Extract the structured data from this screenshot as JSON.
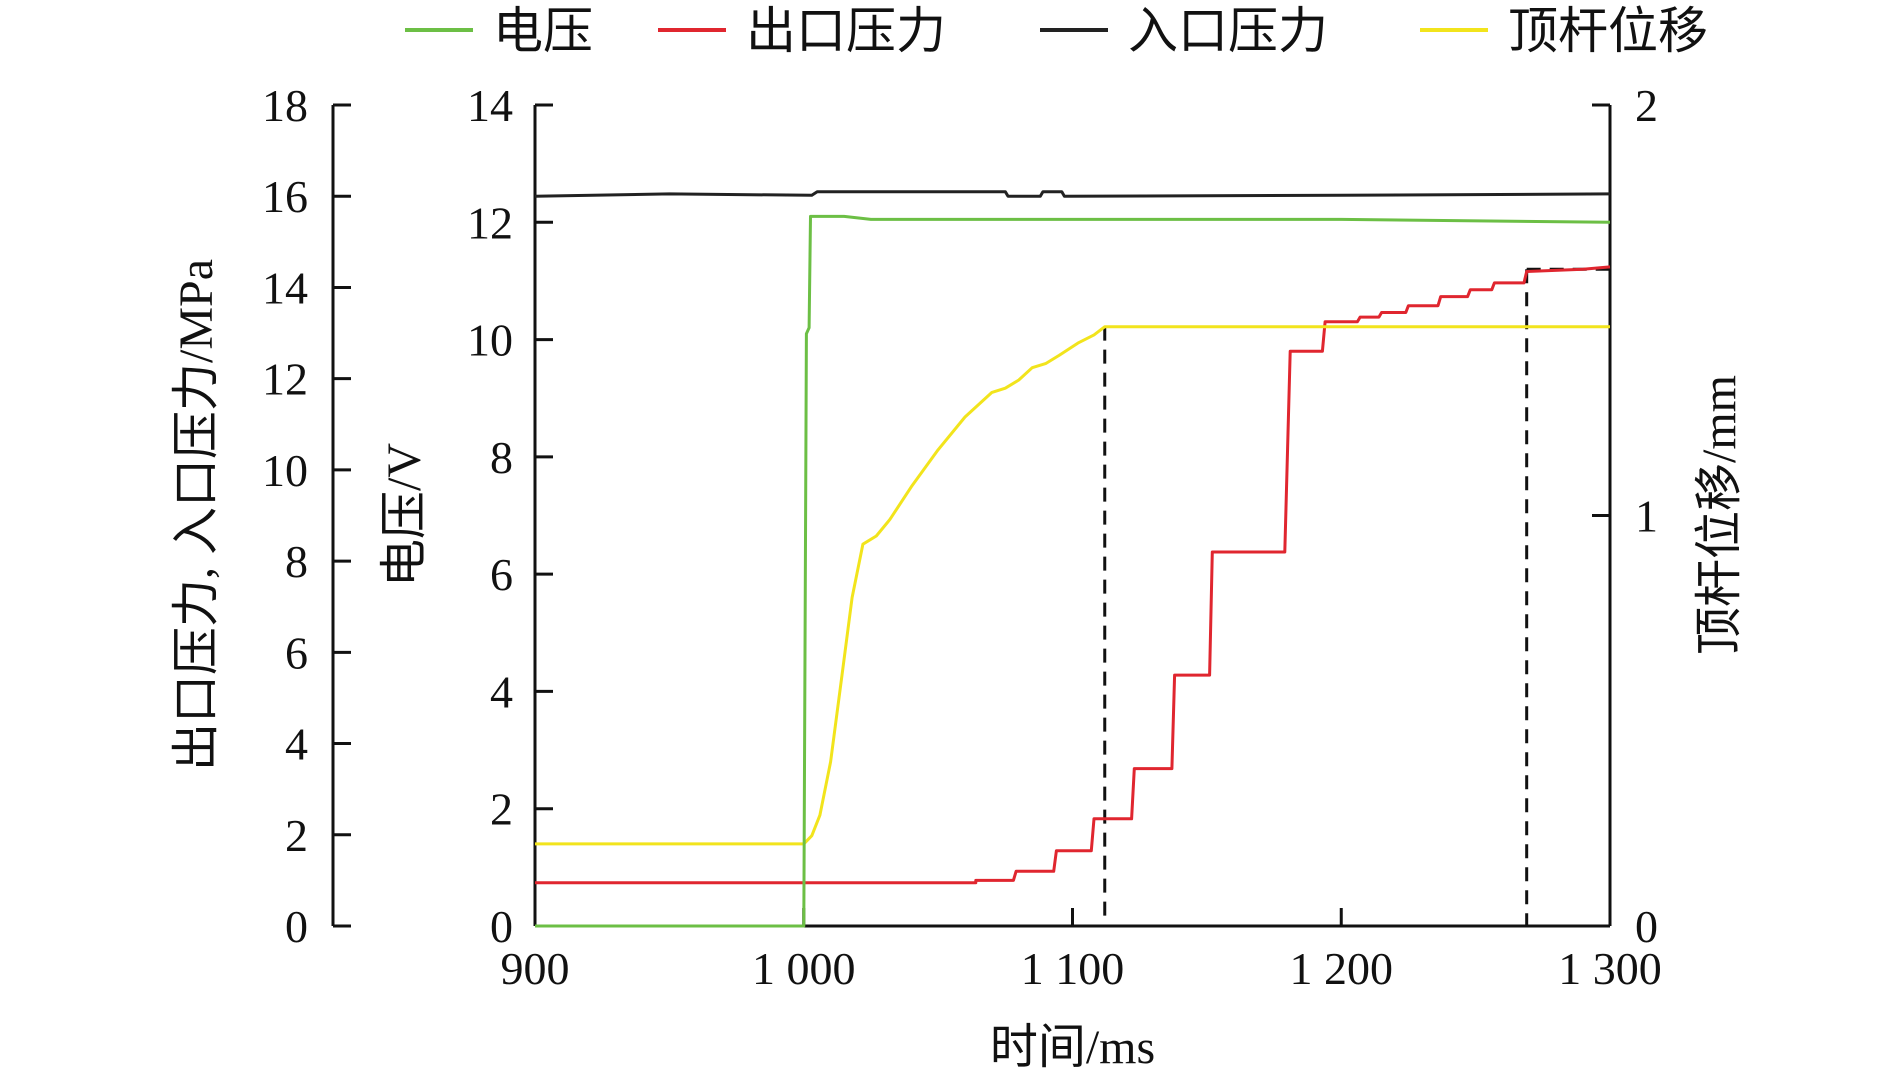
{
  "chart_data": {
    "type": "line",
    "xlabel": "时间/ms",
    "xlim": [
      900,
      1300
    ],
    "xticks": [
      900,
      1000,
      1100,
      1200,
      1300
    ],
    "xtick_labels": [
      "900",
      "1 000",
      "1 100",
      "1 200",
      "1 300"
    ],
    "axes": {
      "pressure": {
        "label": "出口压力, 入口压力/MPa",
        "lim": [
          0,
          18
        ],
        "ticks": [
          0,
          2,
          4,
          6,
          8,
          10,
          12,
          14,
          16,
          18
        ]
      },
      "voltage": {
        "label": "电压/V",
        "lim": [
          0,
          14
        ],
        "ticks": [
          0,
          2,
          4,
          6,
          8,
          10,
          12,
          14
        ]
      },
      "displacement": {
        "label": "顶杆位移/mm",
        "lim": [
          0,
          2
        ],
        "ticks": [
          0,
          1,
          2
        ]
      }
    },
    "legend_position": "top",
    "series": [
      {
        "name": "电压",
        "axis": "voltage",
        "color": "#6cbf45",
        "points": [
          [
            900,
            0
          ],
          [
            1000,
            0
          ],
          [
            1001,
            10.1
          ],
          [
            1002,
            10.2
          ],
          [
            1002.5,
            12.1
          ],
          [
            1015,
            12.1
          ],
          [
            1025,
            12.05
          ],
          [
            1100,
            12.05
          ],
          [
            1200,
            12.05
          ],
          [
            1300,
            12.0
          ]
        ]
      },
      {
        "name": "出口压力",
        "axis": "pressure",
        "color": "#e0262f",
        "points": [
          [
            900,
            0.95
          ],
          [
            1064,
            0.95
          ],
          [
            1064,
            1.0
          ],
          [
            1078,
            1.0
          ],
          [
            1079,
            1.2
          ],
          [
            1093,
            1.2
          ],
          [
            1094,
            1.65
          ],
          [
            1107,
            1.65
          ],
          [
            1108,
            2.35
          ],
          [
            1122,
            2.35
          ],
          [
            1123,
            3.45
          ],
          [
            1137,
            3.45
          ],
          [
            1138,
            5.5
          ],
          [
            1151,
            5.5
          ],
          [
            1152,
            8.2
          ],
          [
            1179,
            8.2
          ],
          [
            1181,
            12.6
          ],
          [
            1193,
            12.6
          ],
          [
            1194,
            13.25
          ],
          [
            1206,
            13.25
          ],
          [
            1207,
            13.35
          ],
          [
            1214,
            13.35
          ],
          [
            1215,
            13.45
          ],
          [
            1224,
            13.45
          ],
          [
            1225,
            13.6
          ],
          [
            1236,
            13.6
          ],
          [
            1237,
            13.8
          ],
          [
            1247,
            13.8
          ],
          [
            1248,
            13.95
          ],
          [
            1256,
            13.95
          ],
          [
            1257,
            14.1
          ],
          [
            1268,
            14.1
          ],
          [
            1269,
            14.35
          ],
          [
            1290,
            14.4
          ],
          [
            1300,
            14.45
          ]
        ]
      },
      {
        "name": "入口压力",
        "axis": "pressure",
        "color": "#222222",
        "points": [
          [
            900,
            16.0
          ],
          [
            950,
            16.05
          ],
          [
            1003,
            16.02
          ],
          [
            1005,
            16.1
          ],
          [
            1075,
            16.1
          ],
          [
            1076,
            16.0
          ],
          [
            1088,
            16.0
          ],
          [
            1089,
            16.1
          ],
          [
            1096,
            16.1
          ],
          [
            1097,
            16.0
          ],
          [
            1200,
            16.02
          ],
          [
            1300,
            16.05
          ]
        ]
      },
      {
        "name": "顶杆位移",
        "axis": "displacement",
        "color": "#f2e41c",
        "points": [
          [
            900,
            0.2
          ],
          [
            1000,
            0.2
          ],
          [
            1003,
            0.22
          ],
          [
            1006,
            0.27
          ],
          [
            1010,
            0.4
          ],
          [
            1014,
            0.6
          ],
          [
            1018,
            0.8
          ],
          [
            1022,
            0.93
          ],
          [
            1027,
            0.95
          ],
          [
            1032,
            0.99
          ],
          [
            1040,
            1.07
          ],
          [
            1050,
            1.16
          ],
          [
            1060,
            1.24
          ],
          [
            1070,
            1.3
          ],
          [
            1075,
            1.31
          ],
          [
            1080,
            1.33
          ],
          [
            1085,
            1.36
          ],
          [
            1090,
            1.37
          ],
          [
            1095,
            1.39
          ],
          [
            1102,
            1.42
          ],
          [
            1108,
            1.44
          ],
          [
            1112,
            1.46
          ],
          [
            1300,
            1.46
          ]
        ]
      }
    ],
    "reference_lines": [
      {
        "x": 1112,
        "y_disp": 1.46,
        "style": "dashed"
      },
      {
        "x": 1269,
        "y_disp": 1.6,
        "x_end": 1300,
        "style": "dashed"
      }
    ]
  }
}
